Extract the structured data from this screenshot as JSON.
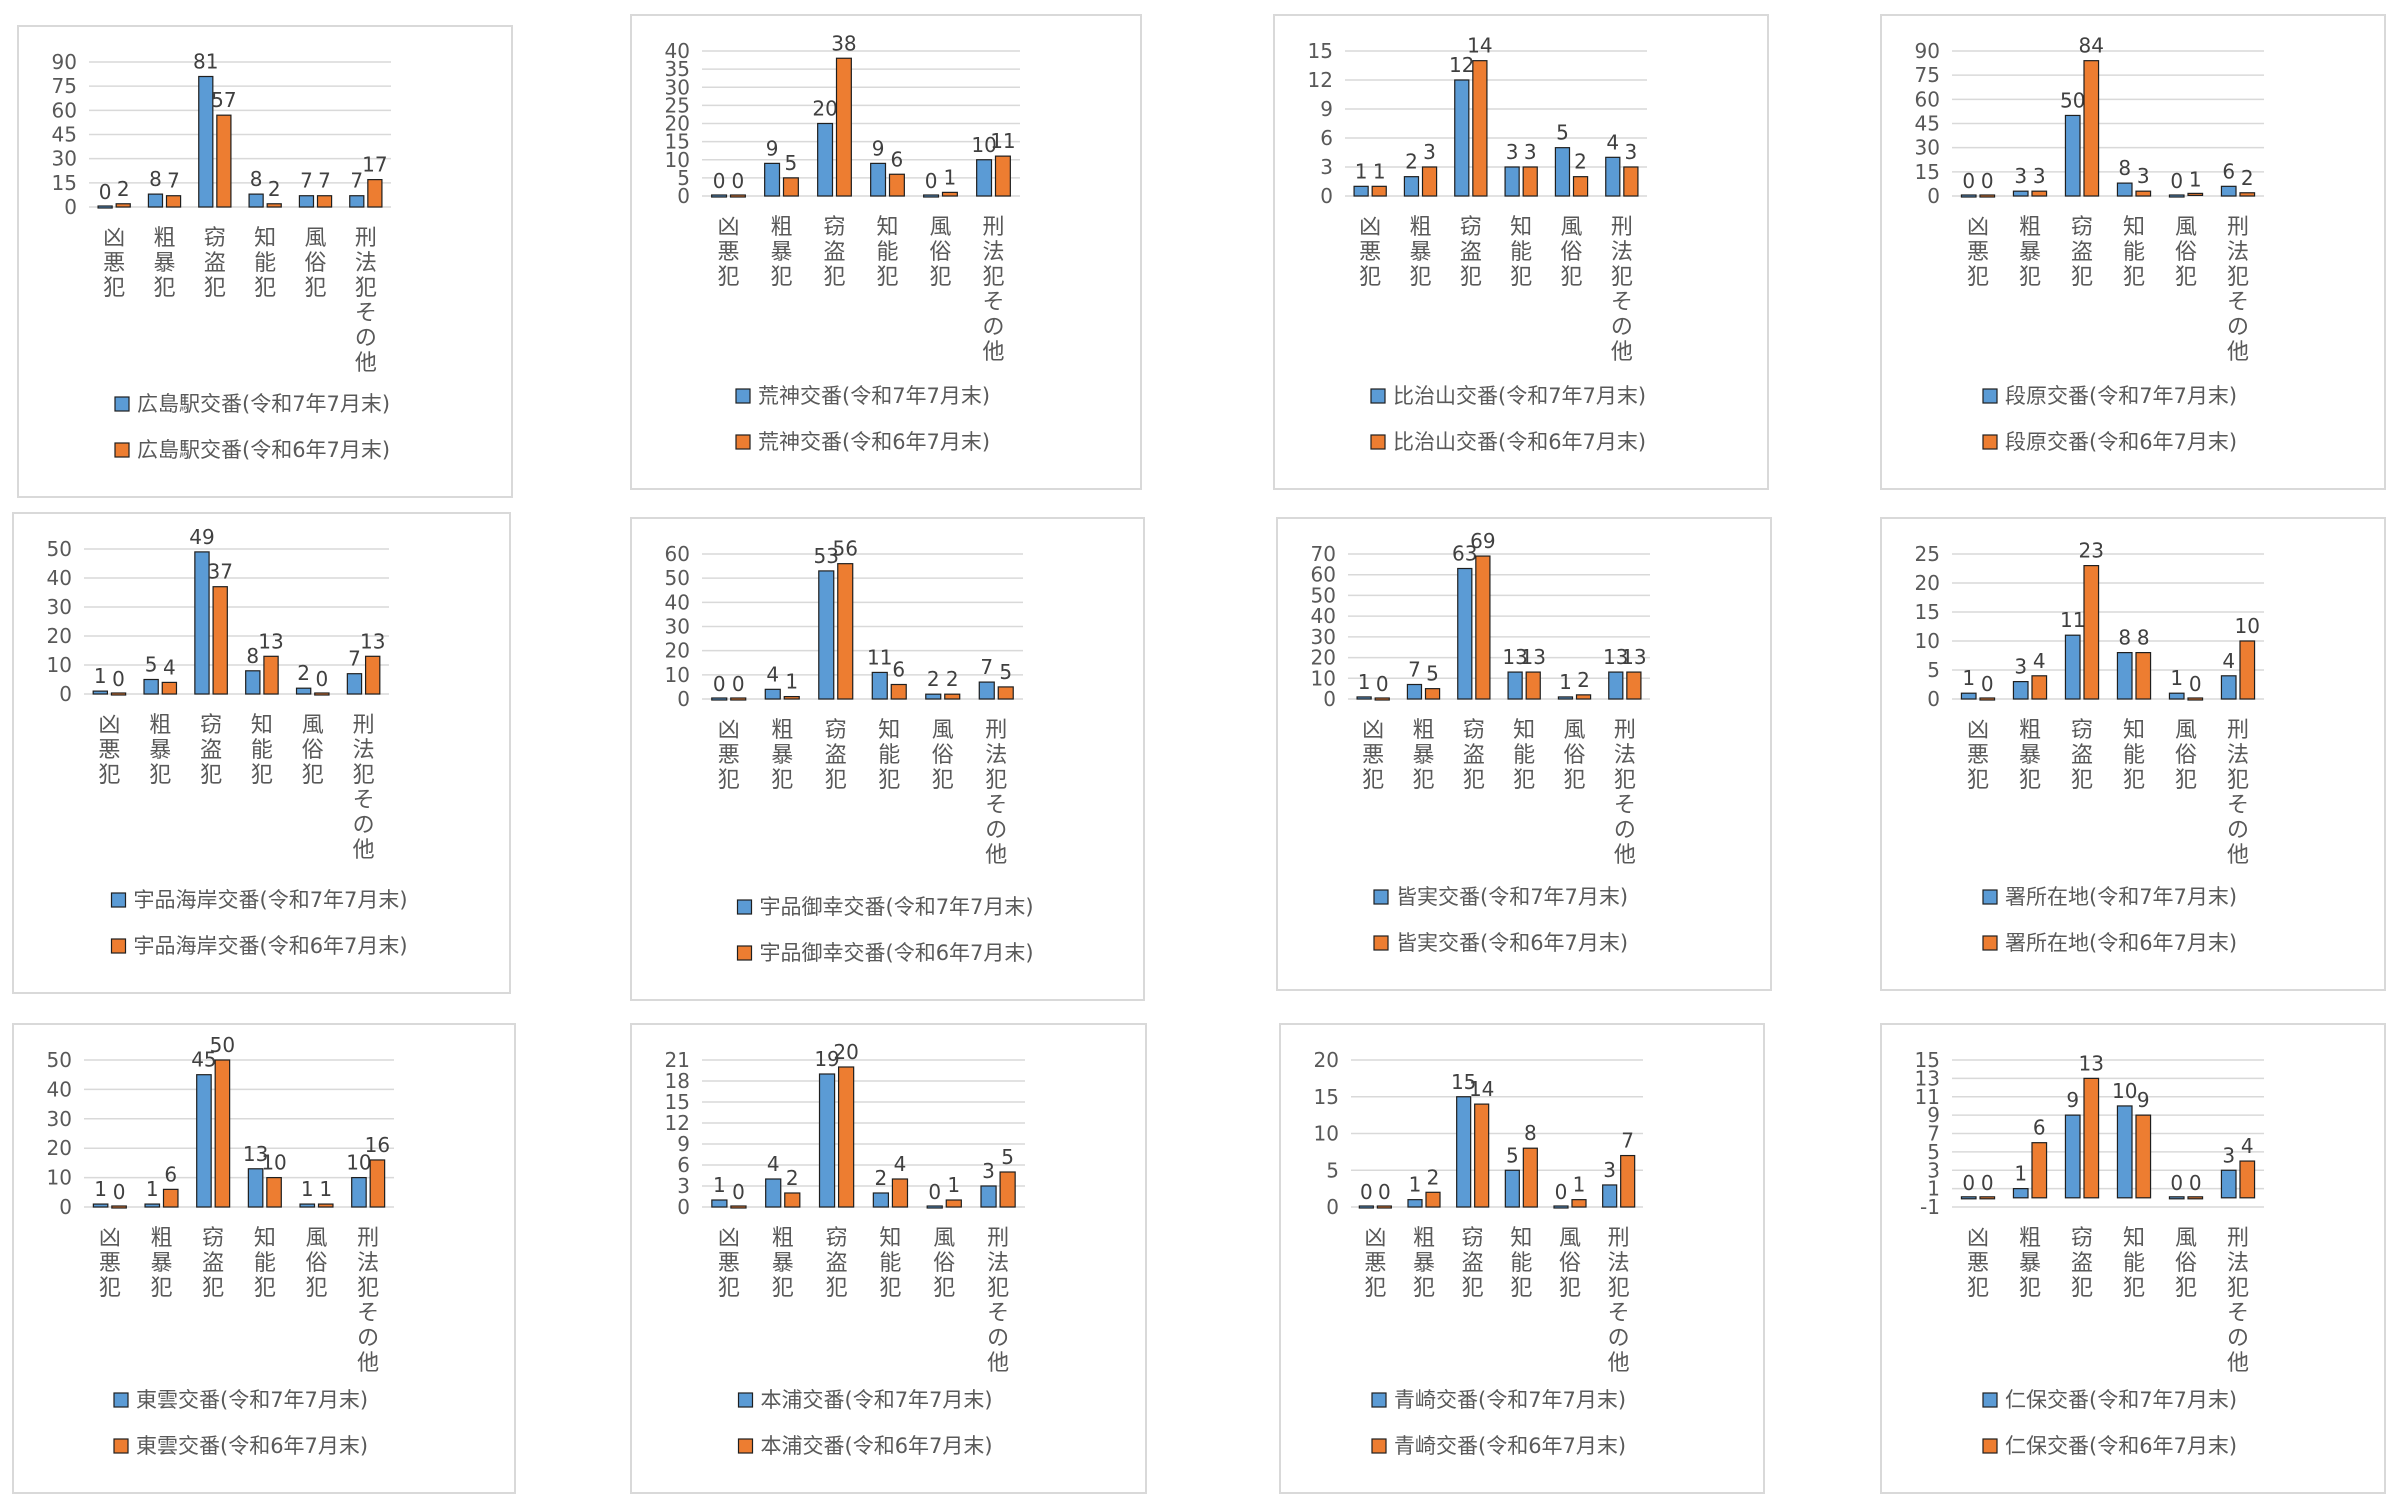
{
  "colors": {
    "current": "#5b9bd5",
    "previous": "#ed7d31",
    "bar_outline": "#1f1f1f",
    "grid": "#d9d9d9",
    "text": "#595959"
  },
  "chart_data": [
    {
      "type": "bar",
      "categories": [
        "凶悪犯",
        "粗暴犯",
        "窃盗犯",
        "知能犯",
        "風俗犯",
        "刑法犯その他"
      ],
      "series": [
        {
          "name": "広島駅交番(令和7年7月末)",
          "values": [
            0,
            8,
            81,
            8,
            7,
            7
          ]
        },
        {
          "name": "広島駅交番(令和6年7月末)",
          "values": [
            2,
            7,
            57,
            2,
            7,
            17
          ]
        }
      ],
      "y_ticks": [
        0,
        15,
        30,
        45,
        60,
        75,
        90
      ],
      "ylim": [
        0,
        90
      ]
    },
    {
      "type": "bar",
      "categories": [
        "凶悪犯",
        "粗暴犯",
        "窃盗犯",
        "知能犯",
        "風俗犯",
        "刑法犯その他"
      ],
      "series": [
        {
          "name": "荒神交番(令和7年7月末)",
          "values": [
            0,
            9,
            20,
            9,
            0,
            10
          ]
        },
        {
          "name": "荒神交番(令和6年7月末)",
          "values": [
            0,
            5,
            38,
            6,
            1,
            11
          ]
        }
      ],
      "y_ticks": [
        0,
        5,
        10,
        15,
        20,
        25,
        30,
        35,
        40
      ],
      "ylim": [
        0,
        40
      ]
    },
    {
      "type": "bar",
      "categories": [
        "凶悪犯",
        "粗暴犯",
        "窃盗犯",
        "知能犯",
        "風俗犯",
        "刑法犯その他"
      ],
      "series": [
        {
          "name": "比治山交番(令和7年7月末)",
          "values": [
            1,
            2,
            12,
            3,
            5,
            4
          ]
        },
        {
          "name": "比治山交番(令和6年7月末)",
          "values": [
            1,
            3,
            14,
            3,
            2,
            3
          ]
        }
      ],
      "y_ticks": [
        0,
        3,
        6,
        9,
        12,
        15
      ],
      "ylim": [
        0,
        15
      ]
    },
    {
      "type": "bar",
      "categories": [
        "凶悪犯",
        "粗暴犯",
        "窃盗犯",
        "知能犯",
        "風俗犯",
        "刑法犯その他"
      ],
      "series": [
        {
          "name": "段原交番(令和7年7月末)",
          "values": [
            0,
            3,
            50,
            8,
            0,
            6
          ]
        },
        {
          "name": "段原交番(令和6年7月末)",
          "values": [
            0,
            3,
            84,
            3,
            1,
            2
          ]
        }
      ],
      "y_ticks": [
        0,
        15,
        30,
        45,
        60,
        75,
        90
      ],
      "ylim": [
        0,
        90
      ]
    },
    {
      "type": "bar",
      "categories": [
        "凶悪犯",
        "粗暴犯",
        "窃盗犯",
        "知能犯",
        "風俗犯",
        "刑法犯その他"
      ],
      "series": [
        {
          "name": "宇品海岸交番(令和7年7月末)",
          "values": [
            1,
            5,
            49,
            8,
            2,
            7
          ]
        },
        {
          "name": "宇品海岸交番(令和6年7月末)",
          "values": [
            0,
            4,
            37,
            13,
            0,
            13
          ]
        }
      ],
      "y_ticks": [
        0,
        10,
        20,
        30,
        40,
        50
      ],
      "ylim": [
        0,
        50
      ]
    },
    {
      "type": "bar",
      "categories": [
        "凶悪犯",
        "粗暴犯",
        "窃盗犯",
        "知能犯",
        "風俗犯",
        "刑法犯その他"
      ],
      "series": [
        {
          "name": "宇品御幸交番(令和7年7月末)",
          "values": [
            0,
            4,
            53,
            11,
            2,
            7
          ]
        },
        {
          "name": "宇品御幸交番(令和6年7月末)",
          "values": [
            0,
            1,
            56,
            6,
            2,
            5
          ]
        }
      ],
      "y_ticks": [
        0,
        10,
        20,
        30,
        40,
        50,
        60
      ],
      "ylim": [
        0,
        60
      ]
    },
    {
      "type": "bar",
      "categories": [
        "凶悪犯",
        "粗暴犯",
        "窃盗犯",
        "知能犯",
        "風俗犯",
        "刑法犯その他"
      ],
      "series": [
        {
          "name": "皆実交番(令和7年7月末)",
          "values": [
            1,
            7,
            63,
            13,
            1,
            13
          ]
        },
        {
          "name": "皆実交番(令和6年7月末)",
          "values": [
            0,
            5,
            69,
            13,
            2,
            13
          ]
        }
      ],
      "y_ticks": [
        0,
        10,
        20,
        30,
        40,
        50,
        60,
        70
      ],
      "ylim": [
        0,
        70
      ]
    },
    {
      "type": "bar",
      "categories": [
        "凶悪犯",
        "粗暴犯",
        "窃盗犯",
        "知能犯",
        "風俗犯",
        "刑法犯その他"
      ],
      "series": [
        {
          "name": "署所在地(令和7年7月末)",
          "values": [
            1,
            3,
            11,
            8,
            1,
            4
          ]
        },
        {
          "name": "署所在地(令和6年7月末)",
          "values": [
            0,
            4,
            23,
            8,
            0,
            10
          ]
        }
      ],
      "y_ticks": [
        0,
        5,
        10,
        15,
        20,
        25
      ],
      "ylim": [
        0,
        25
      ]
    },
    {
      "type": "bar",
      "categories": [
        "凶悪犯",
        "粗暴犯",
        "窃盗犯",
        "知能犯",
        "風俗犯",
        "刑法犯その他"
      ],
      "series": [
        {
          "name": "東雲交番(令和7年7月末)",
          "values": [
            1,
            1,
            45,
            13,
            1,
            10
          ]
        },
        {
          "name": "東雲交番(令和6年7月末)",
          "values": [
            0,
            6,
            50,
            10,
            1,
            16
          ]
        }
      ],
      "y_ticks": [
        0,
        10,
        20,
        30,
        40,
        50
      ],
      "ylim": [
        0,
        50
      ]
    },
    {
      "type": "bar",
      "categories": [
        "凶悪犯",
        "粗暴犯",
        "窃盗犯",
        "知能犯",
        "風俗犯",
        "刑法犯その他"
      ],
      "series": [
        {
          "name": "本浦交番(令和7年7月末)",
          "values": [
            1,
            4,
            19,
            2,
            0,
            3
          ]
        },
        {
          "name": "本浦交番(令和6年7月末)",
          "values": [
            0,
            2,
            20,
            4,
            1,
            5
          ]
        }
      ],
      "y_ticks": [
        0,
        3,
        6,
        9,
        12,
        15,
        18,
        21
      ],
      "ylim": [
        0,
        21
      ]
    },
    {
      "type": "bar",
      "categories": [
        "凶悪犯",
        "粗暴犯",
        "窃盗犯",
        "知能犯",
        "風俗犯",
        "刑法犯その他"
      ],
      "series": [
        {
          "name": "青崎交番(令和7年7月末)",
          "values": [
            0,
            1,
            15,
            5,
            0,
            3
          ]
        },
        {
          "name": "青崎交番(令和6年7月末)",
          "values": [
            0,
            2,
            14,
            8,
            1,
            7
          ]
        }
      ],
      "y_ticks": [
        0,
        5,
        10,
        15,
        20
      ],
      "ylim": [
        0,
        20
      ]
    },
    {
      "type": "bar",
      "categories": [
        "凶悪犯",
        "粗暴犯",
        "窃盗犯",
        "知能犯",
        "風俗犯",
        "刑法犯その他"
      ],
      "series": [
        {
          "name": "仁保交番(令和7年7月末)",
          "values": [
            0,
            1,
            9,
            10,
            0,
            3
          ]
        },
        {
          "name": "仁保交番(令和6年7月末)",
          "values": [
            0,
            6,
            13,
            9,
            0,
            4
          ]
        }
      ],
      "y_ticks": [
        -1,
        1,
        3,
        5,
        7,
        9,
        11,
        13,
        15
      ],
      "ylim": [
        -1,
        15
      ]
    }
  ]
}
